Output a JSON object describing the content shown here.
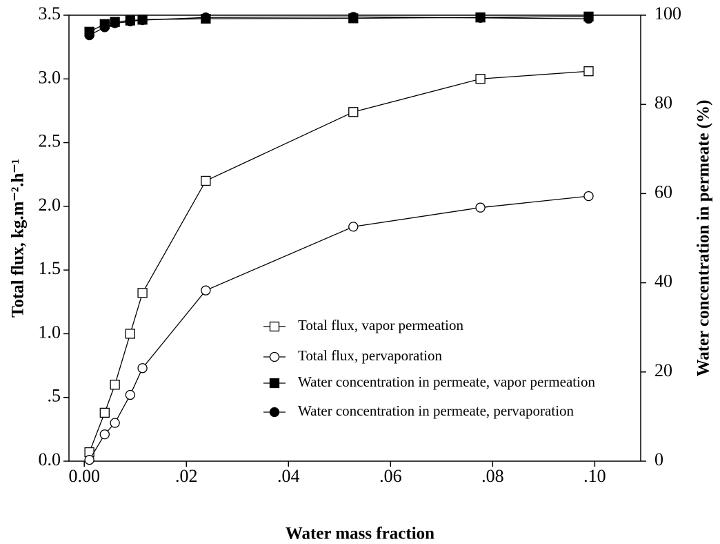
{
  "chart_data": {
    "type": "line",
    "x_label": "Water mass fraction",
    "y_label": "Total flux, kg.m⁻².h⁻¹",
    "y2_label": "Water concentration in permeate (%)",
    "x": [
      0.001,
      0.004,
      0.006,
      0.009,
      0.0114,
      0.0238,
      0.0527,
      0.0776,
      0.0988
    ],
    "xlim": [
      -0.003,
      0.109
    ],
    "xticks": [
      {
        "value": 0,
        "label": "0.00"
      },
      {
        "value": 0.02,
        "label": ".02"
      },
      {
        "value": 0.04,
        "label": ".04"
      },
      {
        "value": 0.06,
        "label": ".06"
      },
      {
        "value": 0.08,
        "label": ".08"
      },
      {
        "value": 0.1,
        "label": ".10"
      }
    ],
    "ylim": [
      0,
      3.5
    ],
    "yticks": [
      {
        "value": 0,
        "label": "0.0"
      },
      {
        "value": 0.5,
        "label": ".5"
      },
      {
        "value": 1,
        "label": "1.0"
      },
      1.5,
      {
        "value": 2,
        "label": "2.0"
      },
      2.5,
      {
        "value": 3,
        "label": "3.0"
      },
      3.5
    ],
    "y2lim": [
      0,
      100
    ],
    "y2ticks": [
      0,
      20,
      40,
      60,
      80,
      100
    ],
    "series": [
      {
        "name": "Total flux, vapor permeation",
        "color": "#000000",
        "marker": "square",
        "filled": false,
        "values": [
          0.07,
          0.38,
          0.6,
          1.0,
          1.32,
          2.2,
          2.74,
          3.0,
          3.06
        ]
      },
      {
        "name": "Total flux, pervaporation",
        "color": "#000000",
        "marker": "circle",
        "filled": false,
        "values": [
          0.01,
          0.21,
          0.3,
          0.52,
          0.73,
          1.34,
          1.84,
          1.99,
          2.08
        ]
      },
      {
        "name": "Water concentration in permeate, vapor permeation",
        "color": "#000000",
        "marker": "square",
        "filled": true,
        "axis": "y2",
        "values": [
          96.3,
          98.0,
          98.5,
          98.8,
          99.0,
          99.2,
          99.3,
          99.5,
          99.7
        ]
      },
      {
        "name": "Water concentration in permeate, pervaporation",
        "color": "#000000",
        "marker": "circle",
        "filled": true,
        "axis": "y2",
        "values": [
          95.5,
          97.3,
          98.2,
          98.6,
          98.9,
          99.5,
          99.6,
          99.4,
          99.2
        ]
      }
    ]
  }
}
